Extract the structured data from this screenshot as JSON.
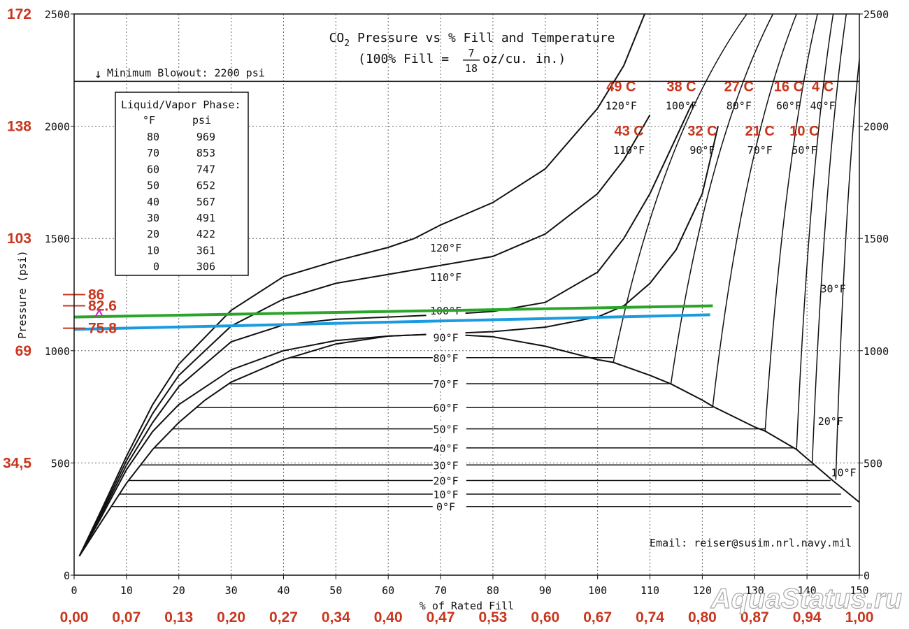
{
  "chart_data": {
    "type": "line",
    "title": "CO",
    "title_sub": "2",
    "title_rest": " Pressure vs % Fill and Temperature",
    "subtitle_pre": "(100% Fill = ",
    "subtitle_num": "7",
    "subtitle_den": "18",
    "subtitle_post": " oz/cu. in.)",
    "xlabel": "% of Rated Fill",
    "ylabel": "Pressure (psi)",
    "xlim": [
      0,
      150
    ],
    "ylim": [
      0,
      2500
    ],
    "grid": true,
    "x_ticks": [
      "0",
      "10",
      "20",
      "30",
      "40",
      "50",
      "60",
      "70",
      "80",
      "90",
      "100",
      "110",
      "120",
      "130",
      "140",
      "150"
    ],
    "y_ticks": [
      "0",
      "500",
      "1000",
      "1500",
      "2000",
      "2500"
    ],
    "x_ticks_ratio": [
      "0,00",
      "0,07",
      "0,13",
      "0,20",
      "0,27",
      "0,34",
      "0,40",
      "0,47",
      "0,53",
      "0,60",
      "0,67",
      "0,74",
      "0,80",
      "0,87",
      "0,94",
      "1,00"
    ],
    "y_ticks_bar": [
      {
        "psi": 500,
        "label": "34,5"
      },
      {
        "psi": 1000,
        "label": "69"
      },
      {
        "psi": 1500,
        "label": "103"
      },
      {
        "psi": 2000,
        "label": "138"
      },
      {
        "psi": 2500,
        "label": "172"
      }
    ],
    "blowout": {
      "psi": 2200,
      "arrow": "↓",
      "label": "Minimum Blowout: 2200 psi"
    },
    "phase_table": {
      "title": "Liquid/Vapor Phase:",
      "col1": "°F",
      "col2": "psi",
      "rows": [
        [
          "80",
          "969"
        ],
        [
          "70",
          "853"
        ],
        [
          "60",
          "747"
        ],
        [
          "50",
          "652"
        ],
        [
          "40",
          "567"
        ],
        [
          "30",
          "491"
        ],
        [
          "20",
          "422"
        ],
        [
          "10",
          "361"
        ],
        [
          "0",
          "306"
        ]
      ]
    },
    "saturation_curve": [
      [
        1,
        85
      ],
      [
        5,
        230
      ],
      [
        10,
        410
      ],
      [
        15,
        560
      ],
      [
        20,
        680
      ],
      [
        25,
        780
      ],
      [
        30,
        860
      ],
      [
        40,
        960
      ],
      [
        50,
        1030
      ],
      [
        60,
        1065
      ],
      [
        70,
        1075
      ],
      [
        80,
        1062
      ],
      [
        90,
        1020
      ],
      [
        100,
        960
      ],
      [
        103,
        948
      ],
      [
        110,
        890
      ],
      [
        114,
        852
      ],
      [
        120,
        780
      ],
      [
        122,
        752
      ],
      [
        130,
        660
      ],
      [
        132,
        642
      ],
      [
        138,
        560
      ],
      [
        140,
        520
      ],
      [
        145,
        420
      ],
      [
        150,
        325
      ]
    ],
    "isotherms_low": [
      {
        "label": "0°F",
        "psi": 306,
        "x_end": 148.5
      },
      {
        "label": "10°F",
        "psi": 361,
        "x_end": 146.5
      },
      {
        "label": "20°F",
        "psi": 422,
        "x_end": 144.5
      },
      {
        "label": "30°F",
        "psi": 491,
        "x_end": 141.5
      },
      {
        "label": "40°F",
        "psi": 567,
        "x_end": 137.5
      },
      {
        "label": "50°F",
        "psi": 652,
        "x_end": 132
      },
      {
        "label": "60°F",
        "psi": 747,
        "x_end": 122
      },
      {
        "label": "70°F",
        "psi": 853,
        "x_end": 114
      },
      {
        "label": "80°F",
        "psi": 969,
        "x_end": 103
      }
    ],
    "isotherms_high": [
      {
        "label": "90°F",
        "points": [
          [
            1,
            85
          ],
          [
            5,
            250
          ],
          [
            10,
            470
          ],
          [
            15,
            640
          ],
          [
            20,
            760
          ],
          [
            30,
            915
          ],
          [
            40,
            1000
          ],
          [
            50,
            1045
          ],
          [
            60,
            1065
          ],
          [
            70,
            1075
          ],
          [
            80,
            1085
          ],
          [
            90,
            1105
          ],
          [
            100,
            1150
          ],
          [
            105,
            1200
          ],
          [
            110,
            1300
          ],
          [
            115,
            1450
          ],
          [
            120,
            1700
          ],
          [
            123,
            2000
          ]
        ]
      },
      {
        "label": "100°F",
        "points": [
          [
            1,
            85
          ],
          [
            5,
            260
          ],
          [
            10,
            490
          ],
          [
            15,
            680
          ],
          [
            20,
            840
          ],
          [
            30,
            1040
          ],
          [
            40,
            1115
          ],
          [
            50,
            1140
          ],
          [
            60,
            1150
          ],
          [
            70,
            1160
          ],
          [
            80,
            1175
          ],
          [
            90,
            1215
          ],
          [
            100,
            1350
          ],
          [
            105,
            1500
          ],
          [
            110,
            1700
          ],
          [
            115,
            1950
          ],
          [
            118,
            2100
          ]
        ]
      },
      {
        "label": "110°F",
        "points": [
          [
            1,
            85
          ],
          [
            5,
            270
          ],
          [
            10,
            510
          ],
          [
            15,
            720
          ],
          [
            20,
            890
          ],
          [
            30,
            1110
          ],
          [
            40,
            1230
          ],
          [
            50,
            1300
          ],
          [
            60,
            1340
          ],
          [
            70,
            1380
          ],
          [
            80,
            1420
          ],
          [
            90,
            1520
          ],
          [
            100,
            1700
          ],
          [
            105,
            1850
          ],
          [
            110,
            2050
          ]
        ]
      },
      {
        "label": "120°F",
        "points": [
          [
            1,
            85
          ],
          [
            5,
            280
          ],
          [
            10,
            530
          ],
          [
            15,
            760
          ],
          [
            20,
            940
          ],
          [
            30,
            1180
          ],
          [
            40,
            1330
          ],
          [
            50,
            1400
          ],
          [
            60,
            1460
          ],
          [
            65,
            1500
          ],
          [
            70,
            1560
          ],
          [
            80,
            1660
          ],
          [
            90,
            1810
          ],
          [
            100,
            2080
          ],
          [
            105,
            2270
          ],
          [
            109,
            2500
          ]
        ]
      }
    ],
    "steep_lines": [
      {
        "x_base": 103,
        "psi_base": 948,
        "x_top": 128.5,
        "psi_top": 2500
      },
      {
        "x_base": 114,
        "psi_base": 852,
        "x_top": 133.5,
        "psi_top": 2500
      },
      {
        "x_base": 122,
        "psi_base": 752,
        "x_top": 138,
        "psi_top": 2500
      },
      {
        "x_base": 132,
        "psi_base": 642,
        "x_top": 142,
        "psi_top": 2500
      },
      {
        "x_base": 138,
        "psi_base": 560,
        "x_top": 145,
        "psi_top": 2500
      },
      {
        "x_base": 141,
        "psi_base": 500,
        "x_top": 147.5,
        "psi_top": 2500
      },
      {
        "x_base": 145.5,
        "psi_base": 425,
        "x_top": 150,
        "psi_top": 2300
      }
    ],
    "temp_labels_upper": [
      {
        "c": "49 C",
        "f": "120°F",
        "x": 104.5
      },
      {
        "c": "38 C",
        "f": "100°F",
        "x": 116
      },
      {
        "c": "27 C",
        "f": "80°F",
        "x": 127
      },
      {
        "c": "16 C",
        "f": "60°F",
        "x": 136.5
      },
      {
        "c": "4 C",
        "f": "40°F",
        "x": 143
      }
    ],
    "temp_labels_lower": [
      {
        "c": "43 C",
        "f": "110°F",
        "x": 106
      },
      {
        "c": "32 C",
        "f": "90°F",
        "x": 120
      },
      {
        "c": "21 C",
        "f": "70°F",
        "x": 131
      },
      {
        "c": "10 C",
        "f": "50°F",
        "x": 139.5
      }
    ],
    "right_labels": [
      {
        "label": "30°F",
        "x": 145,
        "psi": 1260
      },
      {
        "label": "20°F",
        "x": 144.5,
        "psi": 670
      },
      {
        "label": "10°F",
        "x": 147,
        "psi": 440
      }
    ],
    "overlay_lines": [
      {
        "color": "#2aa52a",
        "from": [
          0,
          1150
        ],
        "to": [
          122,
          1200
        ]
      },
      {
        "color": "#1a9be0",
        "from": [
          0,
          1095
        ],
        "to": [
          121.5,
          1160
        ]
      }
    ],
    "overlay_marks": [
      {
        "label": "86",
        "psi": 1250
      },
      {
        "label": "82.6",
        "psi": 1200
      },
      {
        "label": "75.8",
        "psi": 1100
      }
    ],
    "email": "Email: reiser@susim.nrl.navy.mil",
    "watermark": "AquaStatus.ru",
    "colors": {
      "axis": "#111111",
      "red": "#c8361e",
      "grid": "#555555",
      "green": "#2aa52a",
      "blue": "#1a9be0"
    }
  }
}
